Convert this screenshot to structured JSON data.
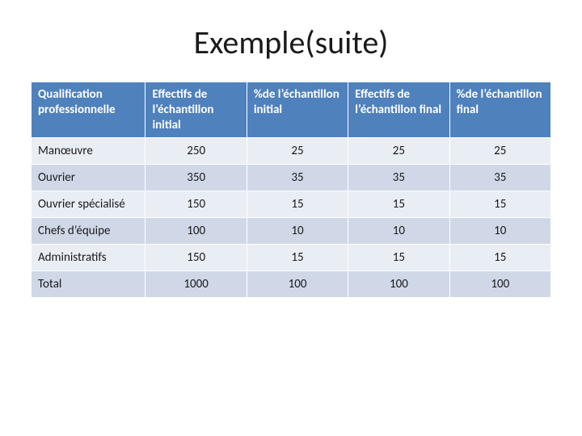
{
  "title": "Exemple(suite)",
  "table": {
    "type": "table",
    "header_bg": "#4f81bd",
    "header_fg": "#ffffff",
    "row_band_odd": "#e9edf4",
    "row_band_even": "#d0d8e8",
    "border_color": "#ffffff",
    "font_family": "Calibri",
    "header_fontsize": 15,
    "cell_fontsize": 15,
    "columns": [
      "Qualification professionnelle",
      "Effectifs de l’échantillon initial",
      "%de l’échantillon initial",
      "Effectifs de l’échantillon final",
      "%de l’échantillon final"
    ],
    "col_align": [
      "left",
      "center",
      "center",
      "center",
      "center"
    ],
    "col_widths_pct": [
      22,
      19.5,
      19.5,
      19.5,
      19.5
    ],
    "rows": [
      {
        "label": "Manœuvre",
        "eff_init": 250,
        "pct_init": 25,
        "eff_final": 25,
        "pct_final": 25
      },
      {
        "label": "Ouvrier",
        "eff_init": 350,
        "pct_init": 35,
        "eff_final": 35,
        "pct_final": 35
      },
      {
        "label": "Ouvrier spécialisé",
        "eff_init": 150,
        "pct_init": 15,
        "eff_final": 15,
        "pct_final": 15
      },
      {
        "label": "Chefs d’équipe",
        "eff_init": 100,
        "pct_init": 10,
        "eff_final": 10,
        "pct_final": 10
      },
      {
        "label": "Administratifs",
        "eff_init": 150,
        "pct_init": 15,
        "eff_final": 15,
        "pct_final": 15
      },
      {
        "label": "Total",
        "eff_init": 1000,
        "pct_init": 100,
        "eff_final": 100,
        "pct_final": 100
      }
    ]
  }
}
